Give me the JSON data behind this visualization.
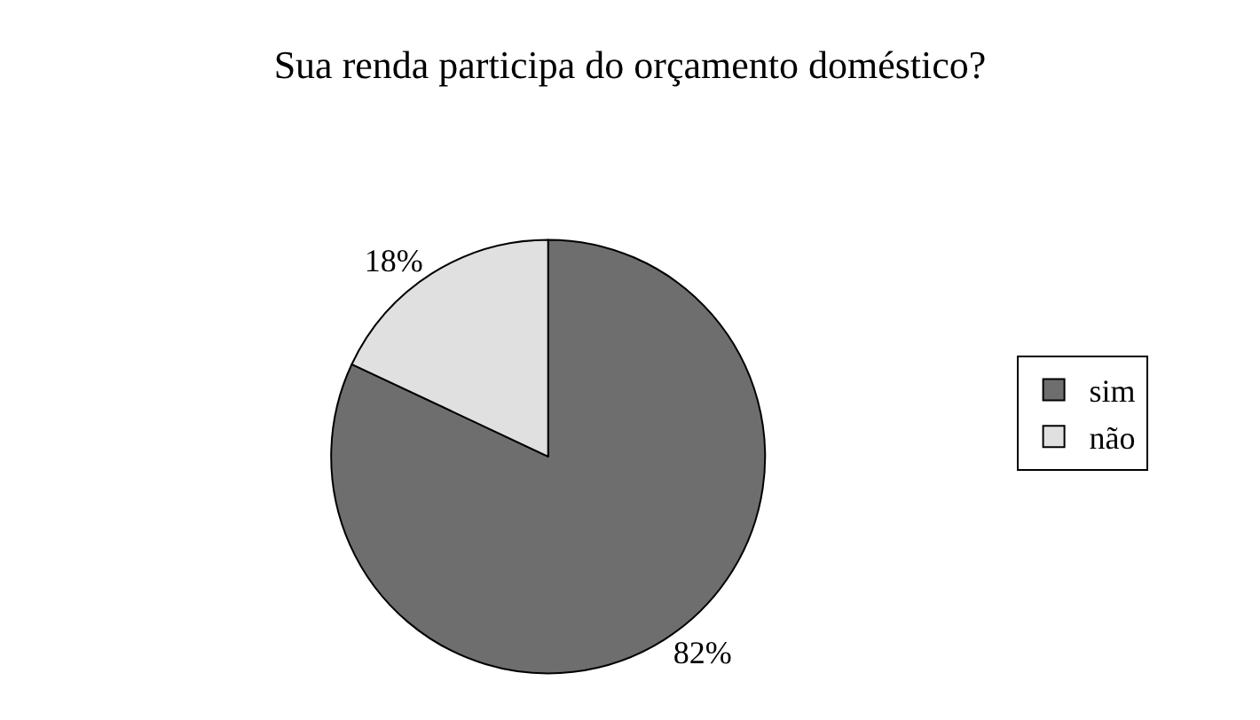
{
  "chart_data": {
    "type": "pie",
    "title": "Sua renda participa do orçamento doméstico?",
    "categories": [
      "sim",
      "não"
    ],
    "values": [
      82,
      18
    ],
    "colors": [
      "#6e6e6e",
      "#e0e0e0"
    ],
    "value_labels": [
      "82%",
      "18%"
    ],
    "legend": "right"
  }
}
